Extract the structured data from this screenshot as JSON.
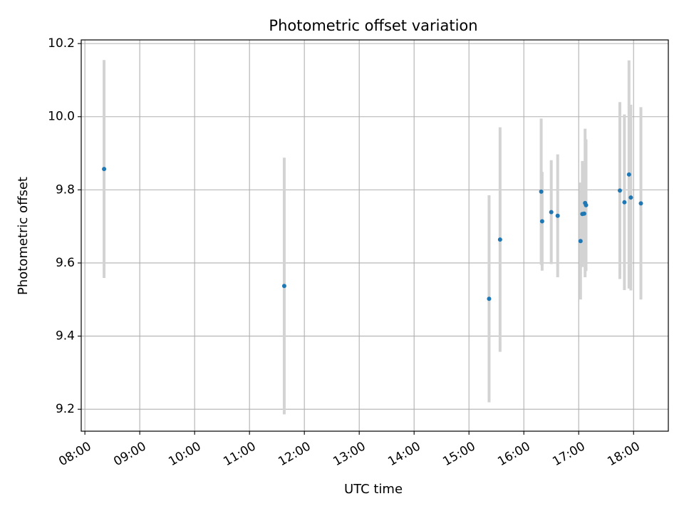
{
  "chart_data": {
    "type": "scatter",
    "title": "Photometric offset variation",
    "xlabel": "UTC time",
    "ylabel": "Photometric offset",
    "x_ticks": [
      "08:00",
      "09:00",
      "10:00",
      "11:00",
      "12:00",
      "13:00",
      "14:00",
      "15:00",
      "16:00",
      "17:00",
      "18:00"
    ],
    "y_ticks": [
      "9.2",
      "9.4",
      "9.6",
      "9.8",
      "10.0",
      "10.2"
    ],
    "xlim": [
      "07:56",
      "18:38"
    ],
    "ylim": [
      9.14,
      10.21
    ],
    "grid": true,
    "errorbar_color": "#d3d3d3",
    "marker_color": "#1f77b4",
    "series": [
      {
        "points": [
          {
            "x": "08:21",
            "y": 9.857,
            "yerr": 0.298
          },
          {
            "x": "11:38",
            "y": 9.537,
            "yerr": 0.351
          },
          {
            "x": "15:22",
            "y": 9.502,
            "yerr": 0.283
          },
          {
            "x": "15:34",
            "y": 9.664,
            "yerr": 0.307
          },
          {
            "x": "16:19",
            "y": 9.795,
            "yerr": 0.2
          },
          {
            "x": "16:20",
            "y": 9.714,
            "yerr": 0.135
          },
          {
            "x": "16:30",
            "y": 9.739,
            "yerr": 0.142
          },
          {
            "x": "16:37",
            "y": 9.729,
            "yerr": 0.168
          },
          {
            "x": "17:02",
            "y": 9.66,
            "yerr": 0.16
          },
          {
            "x": "17:04",
            "y": 9.734,
            "yerr": 0.145
          },
          {
            "x": "17:06",
            "y": 9.735,
            "yerr": 0.13
          },
          {
            "x": "17:07",
            "y": 9.764,
            "yerr": 0.203
          },
          {
            "x": "17:08",
            "y": 9.758,
            "yerr": 0.18
          },
          {
            "x": "17:45",
            "y": 9.798,
            "yerr": 0.242
          },
          {
            "x": "17:50",
            "y": 9.766,
            "yerr": 0.24
          },
          {
            "x": "17:55",
            "y": 9.842,
            "yerr": 0.312
          },
          {
            "x": "17:57",
            "y": 9.779,
            "yerr": 0.254
          },
          {
            "x": "18:08",
            "y": 9.763,
            "yerr": 0.263
          }
        ]
      }
    ]
  }
}
